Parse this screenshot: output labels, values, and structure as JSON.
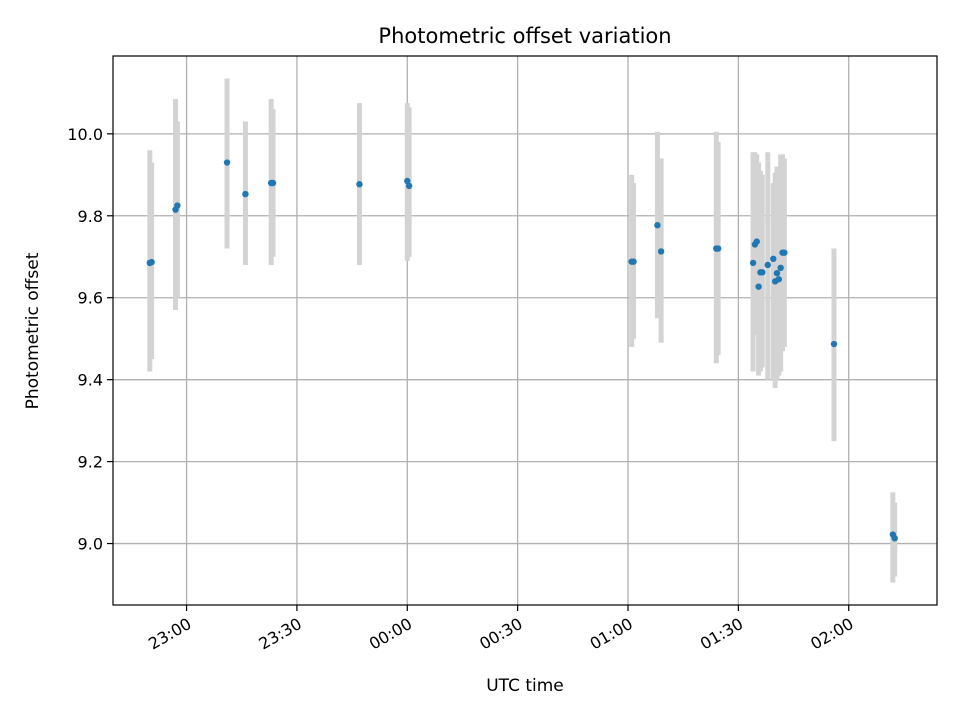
{
  "chart_data": {
    "type": "scatter",
    "title": "Photometric offset variation",
    "xlabel": "UTC time",
    "ylabel": "Photometric offset",
    "xlim": [
      "22:40",
      "02:24"
    ],
    "ylim": [
      8.85,
      10.19
    ],
    "x_ticks": [
      "23:00",
      "23:30",
      "00:00",
      "00:30",
      "01:00",
      "01:30",
      "02:00"
    ],
    "y_ticks": [
      "9.0",
      "9.2",
      "9.4",
      "9.6",
      "9.8",
      "10.0"
    ],
    "grid": true,
    "colors": {
      "marker": "#1f77b4",
      "errorbar": "#d3d3d3",
      "grid": "#b0b0b0"
    },
    "points": [
      {
        "x": "22:50",
        "y": 9.685,
        "ylow": 9.42,
        "yhigh": 9.96
      },
      {
        "x": "22:50:30",
        "y": 9.687,
        "ylow": 9.45,
        "yhigh": 9.93
      },
      {
        "x": "22:57",
        "y": 9.815,
        "ylow": 9.57,
        "yhigh": 10.085
      },
      {
        "x": "22:57:30",
        "y": 9.825,
        "ylow": 9.6,
        "yhigh": 10.03
      },
      {
        "x": "23:11",
        "y": 9.93,
        "ylow": 9.72,
        "yhigh": 10.135
      },
      {
        "x": "23:16",
        "y": 9.853,
        "ylow": 9.68,
        "yhigh": 10.03
      },
      {
        "x": "23:23",
        "y": 9.88,
        "ylow": 9.68,
        "yhigh": 10.085
      },
      {
        "x": "23:23:30",
        "y": 9.88,
        "ylow": 9.7,
        "yhigh": 10.06
      },
      {
        "x": "23:47",
        "y": 9.877,
        "ylow": 9.68,
        "yhigh": 10.075
      },
      {
        "x": "00:00",
        "y": 9.885,
        "ylow": 9.69,
        "yhigh": 10.075
      },
      {
        "x": "00:00:30",
        "y": 9.873,
        "ylow": 9.7,
        "yhigh": 10.065
      },
      {
        "x": "01:01",
        "y": 9.688,
        "ylow": 9.48,
        "yhigh": 9.9
      },
      {
        "x": "01:01:30",
        "y": 9.688,
        "ylow": 9.5,
        "yhigh": 9.88
      },
      {
        "x": "01:08",
        "y": 9.777,
        "ylow": 9.55,
        "yhigh": 10.005
      },
      {
        "x": "01:09",
        "y": 9.713,
        "ylow": 9.49,
        "yhigh": 9.94
      },
      {
        "x": "01:24",
        "y": 9.72,
        "ylow": 9.44,
        "yhigh": 10.005
      },
      {
        "x": "01:24:30",
        "y": 9.72,
        "ylow": 9.46,
        "yhigh": 9.98
      },
      {
        "x": "01:34",
        "y": 9.685,
        "ylow": 9.42,
        "yhigh": 9.955
      },
      {
        "x": "01:34:30",
        "y": 9.73,
        "ylow": 9.51,
        "yhigh": 9.955
      },
      {
        "x": "01:35",
        "y": 9.737,
        "ylow": 9.52,
        "yhigh": 9.95
      },
      {
        "x": "01:35:30",
        "y": 9.627,
        "ylow": 9.41,
        "yhigh": 9.93
      },
      {
        "x": "01:36",
        "y": 9.662,
        "ylow": 9.42,
        "yhigh": 9.91
      },
      {
        "x": "01:36:30",
        "y": 9.662,
        "ylow": 9.43,
        "yhigh": 9.9
      },
      {
        "x": "01:38",
        "y": 9.68,
        "ylow": 9.4,
        "yhigh": 9.955
      },
      {
        "x": "01:39:30",
        "y": 9.695,
        "ylow": 9.4,
        "yhigh": 9.88
      },
      {
        "x": "01:40",
        "y": 9.64,
        "ylow": 9.38,
        "yhigh": 9.905
      },
      {
        "x": "01:40:30",
        "y": 9.66,
        "ylow": 9.4,
        "yhigh": 9.92
      },
      {
        "x": "01:41",
        "y": 9.645,
        "ylow": 9.41,
        "yhigh": 9.885
      },
      {
        "x": "01:41:30",
        "y": 9.673,
        "ylow": 9.42,
        "yhigh": 9.95
      },
      {
        "x": "01:42",
        "y": 9.71,
        "ylow": 9.47,
        "yhigh": 9.95
      },
      {
        "x": "01:42:30",
        "y": 9.71,
        "ylow": 9.48,
        "yhigh": 9.94
      },
      {
        "x": "01:56",
        "y": 9.487,
        "ylow": 9.25,
        "yhigh": 9.72
      },
      {
        "x": "02:12",
        "y": 9.022,
        "ylow": 8.905,
        "yhigh": 9.125
      },
      {
        "x": "02:12:30",
        "y": 9.013,
        "ylow": 8.92,
        "yhigh": 9.1
      }
    ]
  }
}
